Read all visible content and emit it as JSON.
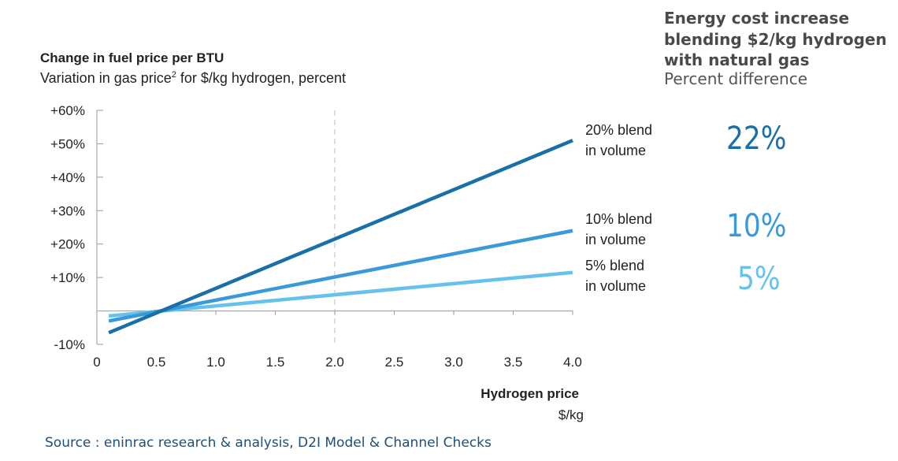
{
  "title": "Change in fuel price per BTU",
  "subtitle_before": "Variation in gas price",
  "subtitle_sup": "2",
  "subtitle_after": " for $/kg hydrogen, percent",
  "side_panel": {
    "title_lines": [
      "Energy cost increase",
      "blending $2/kg hydrogen",
      "with natural gas"
    ],
    "subtitle": "Percent difference",
    "values": [
      {
        "label": "22%",
        "color": "#1a6fa8"
      },
      {
        "label": "10%",
        "color": "#3a9ad9"
      },
      {
        "label": "5%",
        "color": "#66c2ea"
      }
    ]
  },
  "source": "Source : eninrac research & analysis, D2I Model & Channel Checks",
  "chart_data": {
    "type": "line",
    "xlabel": "Hydrogen price",
    "xunit": "$/kg",
    "ylabel": "",
    "xlim": [
      0,
      4.0
    ],
    "ylim": [
      -10,
      60
    ],
    "x_ticks": [
      0,
      0.5,
      1.0,
      1.5,
      2.0,
      2.5,
      3.0,
      3.5,
      4.0
    ],
    "x_tick_labels": [
      "0",
      "0.5",
      "1.0",
      "1.5",
      "2.0",
      "2.5",
      "3.0",
      "3.5",
      "4.0"
    ],
    "y_ticks": [
      60,
      50,
      40,
      30,
      20,
      10,
      -10
    ],
    "y_tick_labels": [
      "+60%",
      "+50%",
      "+40%",
      "+30%",
      "+20%",
      "+10%",
      "-10%"
    ],
    "reference_line_x": 2.0,
    "series": [
      {
        "name_lines": [
          "20% blend",
          "in volume"
        ],
        "color": "#1a6fa8",
        "x": [
          0.1,
          4.0
        ],
        "y": [
          -6.5,
          51
        ]
      },
      {
        "name_lines": [
          "10% blend",
          "in volume"
        ],
        "color": "#3a9ad9",
        "x": [
          0.1,
          4.0
        ],
        "y": [
          -3,
          24
        ]
      },
      {
        "name_lines": [
          "5% blend",
          "in volume"
        ],
        "color": "#66c2ea",
        "x": [
          0.1,
          4.0
        ],
        "y": [
          -1.5,
          11.5
        ]
      }
    ]
  }
}
